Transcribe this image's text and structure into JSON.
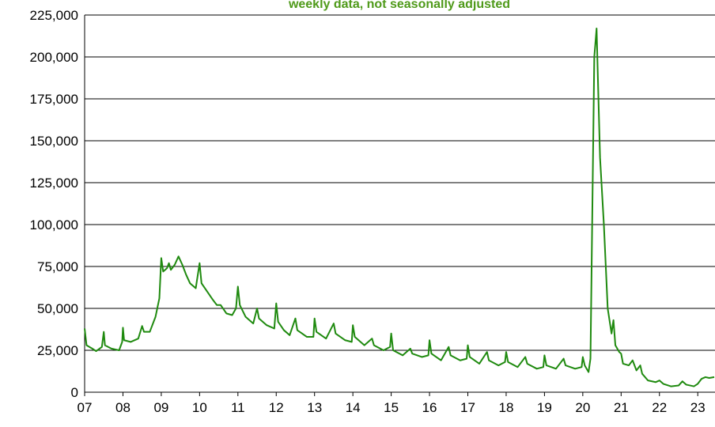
{
  "chart_data": {
    "type": "line",
    "subtitle": "weekly data, not seasonally adjusted",
    "x": [
      2007.0,
      2007.05,
      2007.2,
      2007.3,
      2007.45,
      2007.5,
      2007.53,
      2007.7,
      2007.9,
      2007.98,
      2008.0,
      2008.03,
      2008.2,
      2008.4,
      2008.5,
      2008.55,
      2008.7,
      2008.85,
      2008.95,
      2009.0,
      2009.05,
      2009.15,
      2009.2,
      2009.25,
      2009.35,
      2009.45,
      2009.55,
      2009.65,
      2009.75,
      2009.9,
      2010.0,
      2010.05,
      2010.2,
      2010.35,
      2010.45,
      2010.55,
      2010.7,
      2010.85,
      2010.95,
      2011.0,
      2011.05,
      2011.2,
      2011.4,
      2011.5,
      2011.55,
      2011.75,
      2011.95,
      2012.0,
      2012.05,
      2012.2,
      2012.35,
      2012.5,
      2012.55,
      2012.8,
      2012.97,
      2013.0,
      2013.05,
      2013.3,
      2013.5,
      2013.55,
      2013.8,
      2013.97,
      2014.0,
      2014.05,
      2014.3,
      2014.5,
      2014.55,
      2014.8,
      2014.97,
      2015.0,
      2015.05,
      2015.3,
      2015.5,
      2015.55,
      2015.8,
      2015.97,
      2016.0,
      2016.05,
      2016.3,
      2016.5,
      2016.55,
      2016.8,
      2016.97,
      2017.0,
      2017.05,
      2017.3,
      2017.5,
      2017.55,
      2017.8,
      2017.97,
      2018.0,
      2018.05,
      2018.3,
      2018.5,
      2018.55,
      2018.8,
      2018.97,
      2019.0,
      2019.05,
      2019.3,
      2019.5,
      2019.55,
      2019.8,
      2019.97,
      2020.0,
      2020.05,
      2020.15,
      2020.2,
      2020.3,
      2020.36,
      2020.4,
      2020.45,
      2020.55,
      2020.65,
      2020.75,
      2020.8,
      2020.85,
      2020.95,
      2021.0,
      2021.05,
      2021.2,
      2021.3,
      2021.4,
      2021.5,
      2021.55,
      2021.7,
      2021.9,
      2022.0,
      2022.1,
      2022.3,
      2022.5,
      2022.6,
      2022.7,
      2022.9,
      2023.0,
      2023.1,
      2023.2,
      2023.3,
      2023.43
    ],
    "series": [
      {
        "color": "#1f8a0f",
        "values": [
          38000,
          28000,
          26000,
          24500,
          27000,
          36000,
          28000,
          26000,
          25000,
          30000,
          38500,
          31000,
          30000,
          32000,
          39500,
          36000,
          36000,
          45000,
          56000,
          80000,
          72000,
          74000,
          77000,
          73000,
          76000,
          81000,
          76000,
          70000,
          65000,
          62000,
          77000,
          65000,
          60000,
          55000,
          52000,
          52000,
          47000,
          46000,
          50000,
          63000,
          52000,
          45000,
          41000,
          50000,
          44000,
          40000,
          38000,
          53000,
          42000,
          37000,
          34000,
          44000,
          37000,
          33000,
          33000,
          44000,
          36000,
          32000,
          41000,
          35000,
          31000,
          30000,
          40000,
          33000,
          28000,
          32000,
          28000,
          25000,
          27000,
          35000,
          25000,
          22000,
          26000,
          23000,
          21000,
          22000,
          31000,
          23000,
          19000,
          27000,
          22000,
          19000,
          20000,
          28000,
          21000,
          17000,
          24000,
          19000,
          16000,
          18000,
          24000,
          18000,
          15000,
          21000,
          17000,
          14000,
          15000,
          22000,
          16000,
          14000,
          20000,
          16000,
          14000,
          15000,
          21000,
          16000,
          12000,
          20000,
          200000,
          217000,
          182000,
          140000,
          100000,
          50000,
          35000,
          43000,
          28000,
          24000,
          23000,
          17000,
          16000,
          19000,
          13000,
          16000,
          11000,
          7000,
          6000,
          7000,
          5000,
          3500,
          4000,
          6500,
          4500,
          3500,
          5000,
          8000,
          9000,
          8500,
          9000
        ]
      }
    ],
    "xlim": [
      2007.0,
      2023.45
    ],
    "xticks": [
      {
        "value": 2007,
        "label": "07"
      },
      {
        "value": 2008,
        "label": "08"
      },
      {
        "value": 2009,
        "label": "09"
      },
      {
        "value": 2010,
        "label": "10"
      },
      {
        "value": 2011,
        "label": "11"
      },
      {
        "value": 2012,
        "label": "12"
      },
      {
        "value": 2013,
        "label": "13"
      },
      {
        "value": 2014,
        "label": "14"
      },
      {
        "value": 2015,
        "label": "15"
      },
      {
        "value": 2016,
        "label": "16"
      },
      {
        "value": 2017,
        "label": "17"
      },
      {
        "value": 2018,
        "label": "18"
      },
      {
        "value": 2019,
        "label": "19"
      },
      {
        "value": 2020,
        "label": "20"
      },
      {
        "value": 2021,
        "label": "21"
      },
      {
        "value": 2022,
        "label": "22"
      },
      {
        "value": 2023,
        "label": "23"
      }
    ],
    "ylim": [
      0,
      225000
    ],
    "yticks": [
      0,
      {
        "value": 25000,
        "label": "25,000"
      },
      {
        "value": 50000,
        "label": "50,000"
      },
      {
        "value": 75000,
        "label": "75,000"
      },
      {
        "value": 100000,
        "label": "100,000"
      },
      {
        "value": 125000,
        "label": "125,000"
      },
      {
        "value": 150000,
        "label": "150,000"
      },
      {
        "value": 175000,
        "label": "175,000"
      },
      {
        "value": 200000,
        "label": "200,000"
      },
      {
        "value": 225000,
        "label": "225,000"
      }
    ],
    "grid": true
  }
}
